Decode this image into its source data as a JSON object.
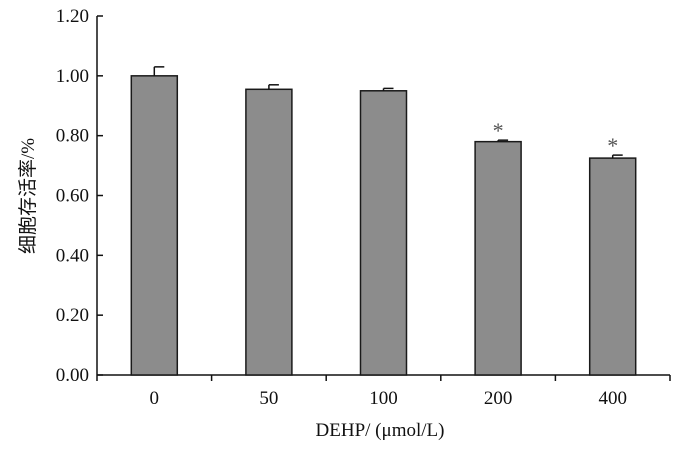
{
  "chart_data": {
    "type": "bar",
    "xlabel": "DEHP/ (μmol/L)",
    "ylabel": "细胞存活率/%",
    "categories": [
      "0",
      "50",
      "100",
      "200",
      "400"
    ],
    "values": [
      1.0,
      0.955,
      0.95,
      0.78,
      0.725
    ],
    "errors": [
      0.03,
      0.015,
      0.008,
      0.005,
      0.01
    ],
    "annotations": [
      "",
      "",
      "",
      "*",
      "*"
    ],
    "ylim": [
      0.0,
      1.2
    ],
    "yticks": [
      "0.00",
      "0.20",
      "0.40",
      "0.60",
      "0.80",
      "1.00",
      "1.20"
    ],
    "grid": false,
    "colors": {
      "bar": "#8c8c8c",
      "bar_stroke": "#1a1a1a",
      "axis": "#111111",
      "annotation": "#555555"
    }
  }
}
